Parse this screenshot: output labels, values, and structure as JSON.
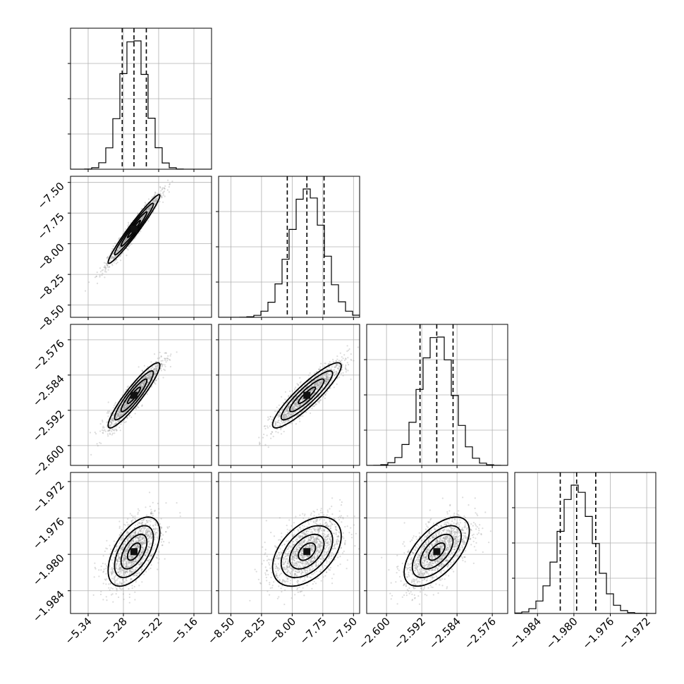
{
  "chart_data": {
    "type": "corner",
    "grid": true,
    "parameters": [
      {
        "range": [
          -5.37,
          -5.13
        ],
        "ticks": [
          -5.34,
          -5.28,
          -5.22,
          -5.16
        ],
        "tick_labels": [
          "−5.34",
          "−5.28",
          "−5.22",
          "−5.16"
        ],
        "median": -5.262,
        "quantile_lo": -5.282,
        "quantile_hi": -5.241,
        "sigma": 0.022
      },
      {
        "range": [
          -8.6,
          -7.45
        ],
        "ticks": [
          -8.5,
          -8.25,
          -8.0,
          -7.75,
          -7.5
        ],
        "tick_labels": [
          "−8.50",
          "−8.25",
          "−8.00",
          "−7.75",
          "−7.50"
        ],
        "median": -7.88,
        "quantile_lo": -8.04,
        "quantile_hi": -7.74,
        "sigma": 0.14
      },
      {
        "range": [
          -2.6045,
          -2.5725
        ],
        "ticks": [
          -2.6,
          -2.592,
          -2.584,
          -2.576
        ],
        "tick_labels": [
          "−2.600",
          "−2.592",
          "−2.584",
          "−2.576"
        ],
        "median": -2.5886,
        "quantile_lo": -2.5924,
        "quantile_hi": -2.5849,
        "sigma": 0.0037
      },
      {
        "range": [
          -1.9865,
          -1.971
        ],
        "ticks": [
          -1.984,
          -1.98,
          -1.976,
          -1.972
        ],
        "tick_labels": [
          "−1.984",
          "−1.980",
          "−1.976",
          "−1.972"
        ],
        "median": -1.9797,
        "quantile_lo": -1.9815,
        "quantile_hi": -1.9776,
        "sigma": 0.0019
      }
    ],
    "correlations": {
      "1-0": 0.97,
      "2-0": 0.92,
      "2-1": 0.9,
      "3-0": 0.55,
      "3-1": 0.45,
      "3-2": 0.6
    },
    "histogram_y_ticks": [
      0.25,
      0.5,
      0.75
    ]
  }
}
